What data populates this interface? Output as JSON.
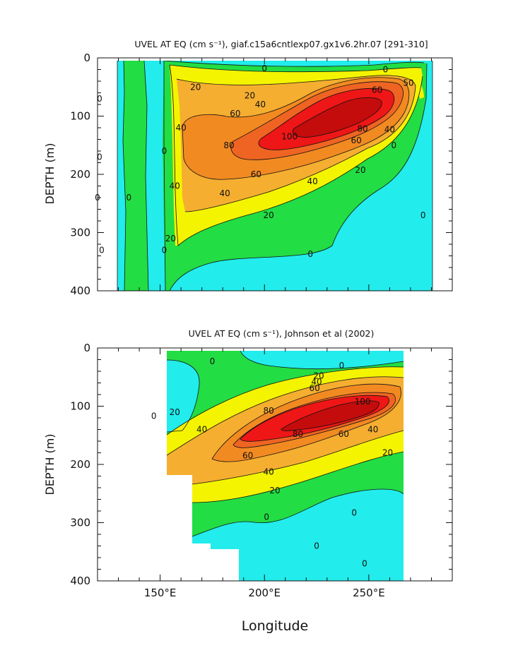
{
  "palette": {
    "cyan": "#22ecec",
    "green": "#22dd44",
    "yellow": "#f4f400",
    "orange_light": "#f5ae30",
    "orange": "#f28a22",
    "orange_dark": "#ef6422",
    "red": "#ee1616",
    "red_dark": "#c40c0c"
  },
  "chart_data": [
    {
      "type": "heatmap",
      "subtype": "filled-contour",
      "title": "UVEL AT EQ (cm s⁻¹), giaf.c15a6cntlexp07.gx1v6.2hr.07 [291-310]",
      "ylabel": "DEPTH (m)",
      "xlabel": "",
      "xlim": [
        120,
        290
      ],
      "ylim": [
        400,
        0
      ],
      "y_ticks": [
        "0",
        "100",
        "200",
        "300",
        "400"
      ],
      "x_ticks": [],
      "data_extent_lon": [
        118,
        278
      ],
      "contour_interval": 10,
      "contour_labels": [
        {
          "text": "0",
          "lon": 121,
          "depth": 70
        },
        {
          "text": "0",
          "lon": 121,
          "depth": 170
        },
        {
          "text": "0",
          "lon": 120,
          "depth": 240
        },
        {
          "text": "0",
          "lon": 122,
          "depth": 330
        },
        {
          "text": "0",
          "lon": 135,
          "depth": 240
        },
        {
          "text": "0",
          "lon": 152,
          "depth": 330
        },
        {
          "text": "0",
          "lon": 152,
          "depth": 160
        },
        {
          "text": "20",
          "lon": 167,
          "depth": 50
        },
        {
          "text": "40",
          "lon": 160,
          "depth": 120
        },
        {
          "text": "20",
          "lon": 155,
          "depth": 310
        },
        {
          "text": "40",
          "lon": 157,
          "depth": 220
        },
        {
          "text": "0",
          "lon": 200,
          "depth": 18
        },
        {
          "text": "0",
          "lon": 258,
          "depth": 20
        },
        {
          "text": "20",
          "lon": 193,
          "depth": 65
        },
        {
          "text": "40",
          "lon": 198,
          "depth": 80
        },
        {
          "text": "60",
          "lon": 186,
          "depth": 96
        },
        {
          "text": "60",
          "lon": 254,
          "depth": 55
        },
        {
          "text": "50",
          "lon": 269,
          "depth": 43
        },
        {
          "text": "100",
          "lon": 212,
          "depth": 135
        },
        {
          "text": "80",
          "lon": 183,
          "depth": 150
        },
        {
          "text": "80",
          "lon": 247,
          "depth": 122
        },
        {
          "text": "60",
          "lon": 244,
          "depth": 142
        },
        {
          "text": "40",
          "lon": 260,
          "depth": 123
        },
        {
          "text": "60",
          "lon": 196,
          "depth": 200
        },
        {
          "text": "40",
          "lon": 223,
          "depth": 212
        },
        {
          "text": "40",
          "lon": 181,
          "depth": 233
        },
        {
          "text": "20",
          "lon": 246,
          "depth": 193
        },
        {
          "text": "20",
          "lon": 202,
          "depth": 270
        },
        {
          "text": "0",
          "lon": 222,
          "depth": 337
        },
        {
          "text": "0",
          "lon": 262,
          "depth": 150
        },
        {
          "text": "0",
          "lon": 276,
          "depth": 270
        }
      ]
    },
    {
      "type": "heatmap",
      "subtype": "filled-contour",
      "title": "UVEL AT EQ (cm s⁻¹), Johnson et al (2002)",
      "ylabel": "DEPTH (m)",
      "xlabel": "Longitude",
      "xlim": [
        120,
        290
      ],
      "ylim": [
        400,
        0
      ],
      "y_ticks": [
        "0",
        "100",
        "200",
        "300",
        "400"
      ],
      "x_ticks": [
        "150°E",
        "200°E",
        "250°E"
      ],
      "x_tick_values": [
        150,
        200,
        250
      ],
      "data_extent_lon": [
        143,
        265
      ],
      "contour_interval": 10,
      "contour_labels": [
        {
          "text": "0",
          "lon": 175,
          "depth": 23
        },
        {
          "text": "0",
          "lon": 147,
          "depth": 117
        },
        {
          "text": "20",
          "lon": 157,
          "depth": 110
        },
        {
          "text": "40",
          "lon": 170,
          "depth": 140
        },
        {
          "text": "0",
          "lon": 237,
          "depth": 30
        },
        {
          "text": "20",
          "lon": 226,
          "depth": 48
        },
        {
          "text": "40",
          "lon": 225,
          "depth": 58
        },
        {
          "text": "60",
          "lon": 224,
          "depth": 69
        },
        {
          "text": "80",
          "lon": 202,
          "depth": 108
        },
        {
          "text": "100",
          "lon": 247,
          "depth": 92
        },
        {
          "text": "80",
          "lon": 216,
          "depth": 148
        },
        {
          "text": "60",
          "lon": 238,
          "depth": 148
        },
        {
          "text": "40",
          "lon": 252,
          "depth": 140
        },
        {
          "text": "60",
          "lon": 192,
          "depth": 185
        },
        {
          "text": "40",
          "lon": 202,
          "depth": 213
        },
        {
          "text": "20",
          "lon": 259,
          "depth": 180
        },
        {
          "text": "20",
          "lon": 205,
          "depth": 245
        },
        {
          "text": "0",
          "lon": 201,
          "depth": 290
        },
        {
          "text": "0",
          "lon": 243,
          "depth": 283
        },
        {
          "text": "0",
          "lon": 225,
          "depth": 340
        },
        {
          "text": "0",
          "lon": 248,
          "depth": 370
        }
      ]
    }
  ]
}
